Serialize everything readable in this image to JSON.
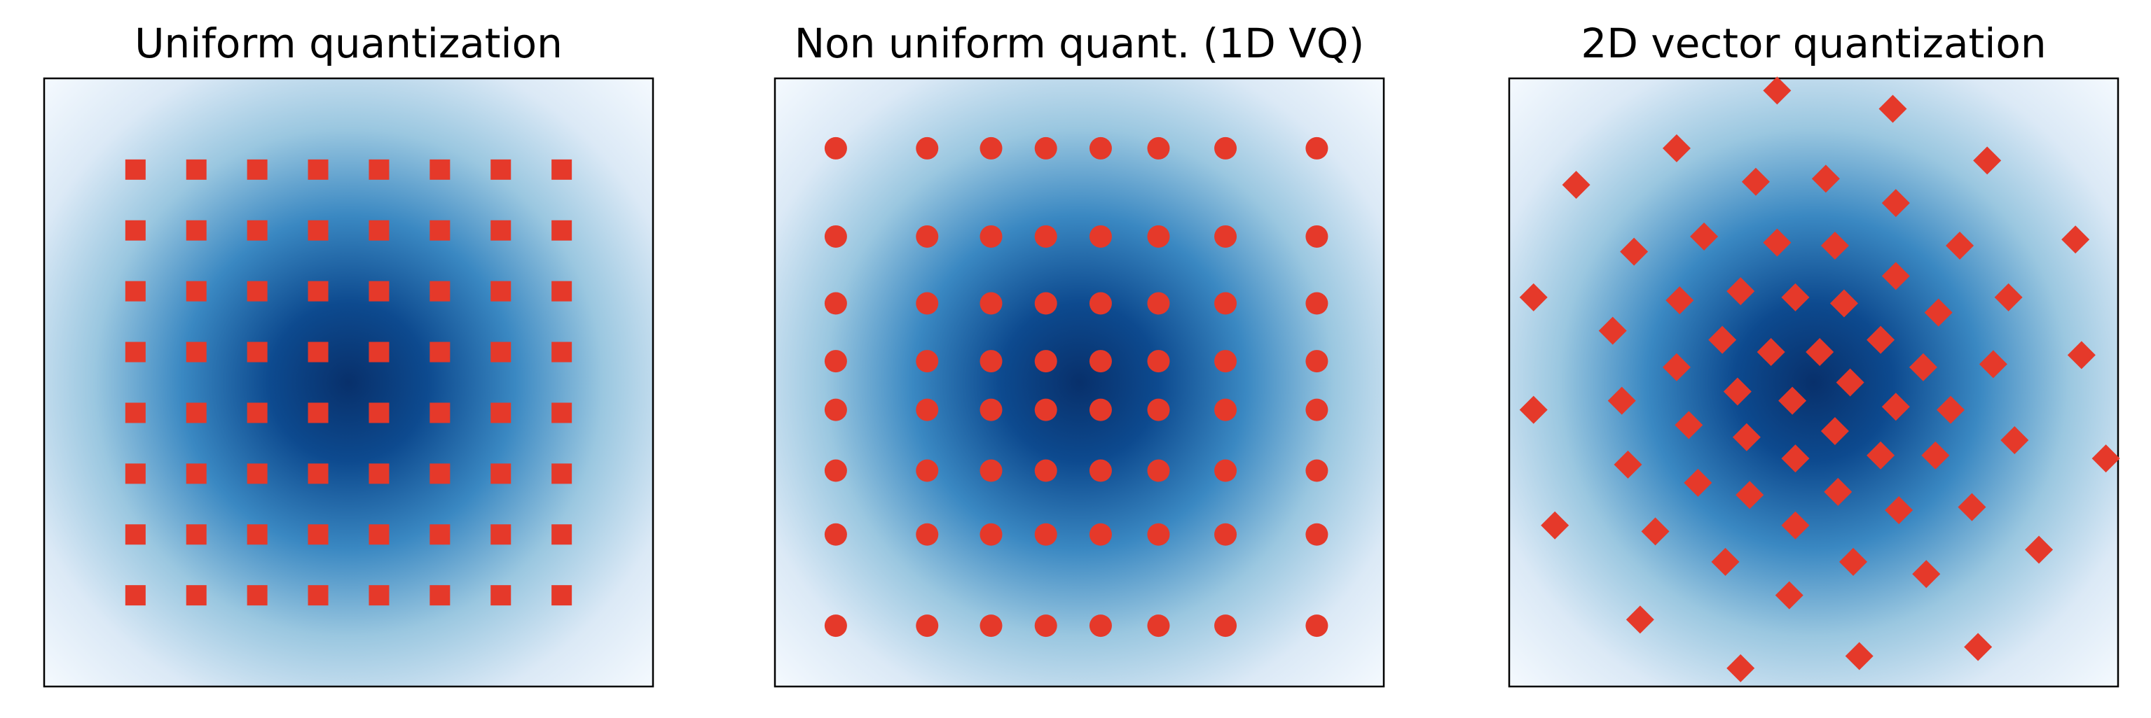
{
  "chart_data": [
    {
      "type": "scatter",
      "title": "Uniform quantization",
      "marker": "square",
      "color": "#e5392a",
      "xlim": [
        -1,
        1
      ],
      "ylim": [
        -1,
        1
      ],
      "x": [
        -0.7,
        -0.5,
        -0.3,
        -0.1,
        0.1,
        0.3,
        0.5,
        0.7,
        -0.7,
        -0.5,
        -0.3,
        -0.1,
        0.1,
        0.3,
        0.5,
        0.7,
        -0.7,
        -0.5,
        -0.3,
        -0.1,
        0.1,
        0.3,
        0.5,
        0.7,
        -0.7,
        -0.5,
        -0.3,
        -0.1,
        0.1,
        0.3,
        0.5,
        0.7,
        -0.7,
        -0.5,
        -0.3,
        -0.1,
        0.1,
        0.3,
        0.5,
        0.7,
        -0.7,
        -0.5,
        -0.3,
        -0.1,
        0.1,
        0.3,
        0.5,
        0.7,
        -0.7,
        -0.5,
        -0.3,
        -0.1,
        0.1,
        0.3,
        0.5,
        0.7,
        -0.7,
        -0.5,
        -0.3,
        -0.1,
        0.1,
        0.3,
        0.5,
        0.7
      ],
      "y": [
        0.7,
        0.7,
        0.7,
        0.7,
        0.7,
        0.7,
        0.7,
        0.7,
        0.5,
        0.5,
        0.5,
        0.5,
        0.5,
        0.5,
        0.5,
        0.5,
        0.3,
        0.3,
        0.3,
        0.3,
        0.3,
        0.3,
        0.3,
        0.3,
        0.1,
        0.1,
        0.1,
        0.1,
        0.1,
        0.1,
        0.1,
        0.1,
        -0.1,
        -0.1,
        -0.1,
        -0.1,
        -0.1,
        -0.1,
        -0.1,
        -0.1,
        -0.3,
        -0.3,
        -0.3,
        -0.3,
        -0.3,
        -0.3,
        -0.3,
        -0.3,
        -0.5,
        -0.5,
        -0.5,
        -0.5,
        -0.5,
        -0.5,
        -0.5,
        -0.5,
        -0.7,
        -0.7,
        -0.7,
        -0.7,
        -0.7,
        -0.7,
        -0.7,
        -0.7
      ]
    },
    {
      "type": "scatter",
      "title": "Non uniform quant. (1D VQ)",
      "marker": "circle",
      "color": "#e5392a",
      "xlim": [
        -1,
        1
      ],
      "ylim": [
        -1,
        1
      ],
      "x": [
        -0.8,
        -0.5,
        -0.29,
        -0.11,
        0.07,
        0.26,
        0.48,
        0.78,
        -0.8,
        -0.5,
        -0.29,
        -0.11,
        0.07,
        0.26,
        0.48,
        0.78,
        -0.8,
        -0.5,
        -0.29,
        -0.11,
        0.07,
        0.26,
        0.48,
        0.78,
        -0.8,
        -0.5,
        -0.29,
        -0.11,
        0.07,
        0.26,
        0.48,
        0.78,
        -0.8,
        -0.5,
        -0.29,
        -0.11,
        0.07,
        0.26,
        0.48,
        0.78,
        -0.8,
        -0.5,
        -0.29,
        -0.11,
        0.07,
        0.26,
        0.48,
        0.78,
        -0.8,
        -0.5,
        -0.29,
        -0.11,
        0.07,
        0.26,
        0.48,
        0.78,
        -0.8,
        -0.5,
        -0.29,
        -0.11,
        0.07,
        0.26,
        0.48,
        0.78
      ],
      "y": [
        0.77,
        0.77,
        0.77,
        0.77,
        0.77,
        0.77,
        0.77,
        0.77,
        0.48,
        0.48,
        0.48,
        0.48,
        0.48,
        0.48,
        0.48,
        0.48,
        0.26,
        0.26,
        0.26,
        0.26,
        0.26,
        0.26,
        0.26,
        0.26,
        0.07,
        0.07,
        0.07,
        0.07,
        0.07,
        0.07,
        0.07,
        0.07,
        -0.09,
        -0.09,
        -0.09,
        -0.09,
        -0.09,
        -0.09,
        -0.09,
        -0.09,
        -0.29,
        -0.29,
        -0.29,
        -0.29,
        -0.29,
        -0.29,
        -0.29,
        -0.29,
        -0.5,
        -0.5,
        -0.5,
        -0.5,
        -0.5,
        -0.5,
        -0.5,
        -0.5,
        -0.8,
        -0.8,
        -0.8,
        -0.8,
        -0.8,
        -0.8,
        -0.8,
        -0.8
      ]
    },
    {
      "type": "scatter",
      "title": "2D vector quantization",
      "marker": "diamond",
      "color": "#e5392a",
      "xlim": [
        -1,
        1
      ],
      "ylim": [
        -1,
        1
      ],
      "x": [
        -0.12,
        0.26,
        -0.45,
        0.57,
        -0.78,
        -0.19,
        0.04,
        0.27,
        -0.36,
        -0.12,
        0.07,
        0.48,
        0.86,
        -0.59,
        0.27,
        -0.92,
        -0.44,
        -0.24,
        -0.06,
        0.1,
        0.41,
        0.64,
        -0.66,
        -0.3,
        -0.14,
        0.02,
        0.22,
        -0.45,
        0.36,
        0.59,
        0.88,
        -0.25,
        -0.07,
        0.12,
        -0.92,
        -0.63,
        -0.41,
        0.27,
        0.45,
        -0.22,
        0.07,
        0.66,
        0.96,
        -0.61,
        -0.06,
        0.22,
        0.4,
        -0.38,
        -0.21,
        0.08,
        0.52,
        0.28,
        -0.85,
        -0.52,
        -0.06,
        0.74,
        -0.29,
        0.13,
        0.37,
        -0.08,
        -0.57,
        0.54,
        0.15,
        -0.24
      ],
      "y": [
        0.96,
        0.9,
        0.77,
        0.73,
        0.65,
        0.66,
        0.67,
        0.59,
        0.48,
        0.46,
        0.45,
        0.45,
        0.47,
        0.43,
        0.35,
        0.28,
        0.27,
        0.3,
        0.28,
        0.26,
        0.23,
        0.28,
        0.17,
        0.14,
        0.1,
        0.1,
        0.14,
        0.05,
        0.05,
        0.06,
        0.09,
        -0.03,
        -0.06,
        0.0,
        -0.09,
        -0.06,
        -0.14,
        -0.08,
        -0.09,
        -0.18,
        -0.16,
        -0.19,
        -0.25,
        -0.27,
        -0.25,
        -0.24,
        -0.24,
        -0.33,
        -0.37,
        -0.36,
        -0.41,
        -0.42,
        -0.47,
        -0.49,
        -0.47,
        -0.55,
        -0.59,
        -0.59,
        -0.63,
        -0.7,
        -0.78,
        -0.87,
        -0.9,
        -0.94
      ]
    }
  ]
}
